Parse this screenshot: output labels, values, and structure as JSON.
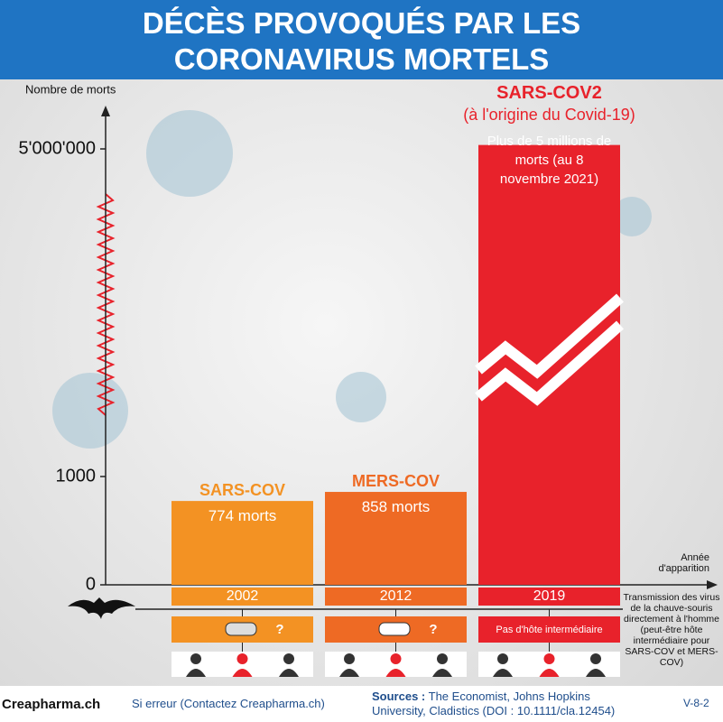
{
  "chart_data": {
    "type": "bar",
    "title": "DÉCÈS PROVOQUÉS PAR LES CORONAVIRUS MORTELS",
    "y_label": "Nombre de morts",
    "x_label": "Année d'apparition",
    "axis_break": true,
    "categories": [
      "2002",
      "2012",
      "2019"
    ],
    "names": [
      "SARS-COV",
      "MERS-COV",
      "SARS-COV2"
    ],
    "name_colors": [
      "#f39223",
      "#ee6a24",
      "#e8222b"
    ],
    "annotation": "(à l'origine du Covid-19)",
    "colors": [
      "#f39223",
      "#ee6a24",
      "#e8222b"
    ],
    "values": [
      774,
      858,
      5060000
    ],
    "value_labels": [
      "774 morts",
      "858 morts",
      "Plus de 5 millions de morts (au 8 novembre 2021)"
    ],
    "ylim": [
      0,
      5600000
    ],
    "yticks": [
      0,
      1000,
      {
        "value": 5000000,
        "label": "5'000'000"
      }
    ]
  },
  "transmission": {
    "hosts": [
      "?",
      "?",
      "Pas d'hôte intermédiaire"
    ],
    "note": "Transmission des virus de la chauve-souris directement à l'homme (peut-être hôte intermédiaire pour SARS-COV et MERS-COV)"
  },
  "footer": {
    "brand": "Creapharma.ch",
    "error": "Si erreur (Contactez Creapharma.ch)",
    "sources_label": "Sources :",
    "sources": "The Economist, Johns Hopkins University, Cladistics (DOI : 10.1111/cla.12454)",
    "version": "V-8-2"
  }
}
